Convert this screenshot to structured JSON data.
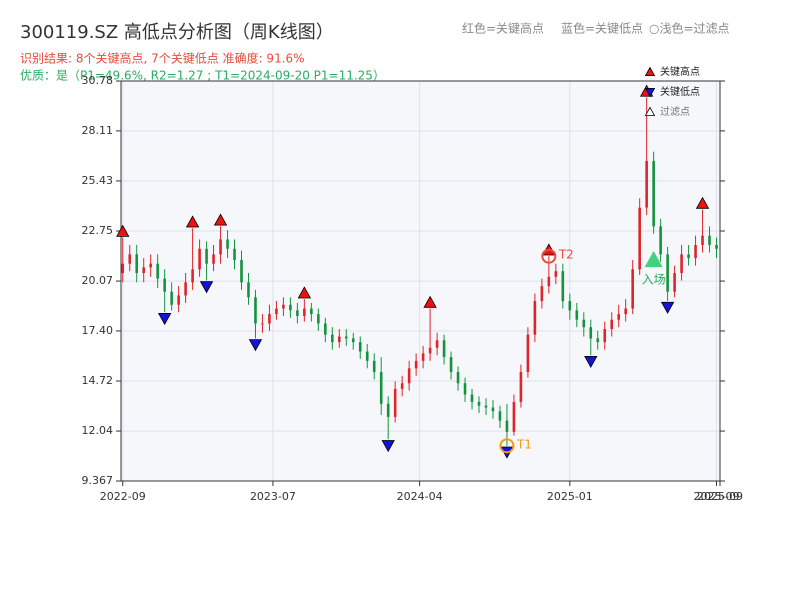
{
  "chart_data": {
    "type": "candlestick",
    "title": "300119.SZ 高低点分析图（周K线图）",
    "result_text": "识别结果: 8个关键高点, 7个关键低点  准确度: 91.6%",
    "quality_text": "优质：是（P1=49.6%, R2=1.27 ; T1=2024-09-20 P1=11.25）",
    "header_legend": [
      "红色=关键高点",
      "蓝色=关键低点",
      "○浅色=过滤点"
    ],
    "ylim": [
      9.367,
      30.78
    ],
    "yticks": [
      9.367,
      12.04,
      14.72,
      {
        "value": 17.4,
        "label": "17.40"
      },
      20.07,
      22.75,
      25.43,
      28.11,
      30.78
    ],
    "xlim": [
      -0.5,
      171
    ],
    "xticks": [
      {
        "value": 0,
        "label": "2022-09"
      },
      {
        "value": 43,
        "label": "2023-07"
      },
      {
        "value": 85,
        "label": "2024-04"
      },
      {
        "value": 128,
        "label": "2025-01"
      },
      {
        "value": 170,
        "label": "2025-09"
      },
      {
        "value": 171,
        "label": "2025-09"
      }
    ],
    "grid": true,
    "up_color": "#e0242b",
    "down_color": "#14933f",
    "candles": {
      "x": [
        0,
        2,
        4,
        6,
        8,
        10,
        12,
        14,
        16,
        18,
        20,
        22,
        24,
        26,
        28,
        30,
        32,
        34,
        36,
        38,
        40,
        42,
        44,
        46,
        48,
        50,
        52,
        54,
        56,
        58,
        60,
        62,
        64,
        66,
        68,
        70,
        72,
        74,
        76,
        78,
        80,
        82,
        84,
        86,
        88,
        90,
        92,
        94,
        96,
        98,
        100,
        102,
        104,
        106,
        108,
        110,
        112,
        114,
        116,
        118,
        120,
        122,
        124,
        126,
        128,
        130,
        132,
        134,
        136,
        138,
        140,
        142,
        144,
        146,
        148,
        150,
        152,
        154,
        156,
        158,
        160,
        162,
        164,
        166,
        168,
        170
      ],
      "open": [
        20.5,
        21,
        21.5,
        20.5,
        20.8,
        21,
        20.2,
        19.5,
        18.8,
        19.3,
        20,
        20.7,
        21.8,
        21,
        21.5,
        22.3,
        21.8,
        21.2,
        20,
        19.2,
        17.8,
        17.8,
        18.3,
        18.6,
        18.8,
        18.5,
        18.2,
        18.6,
        18.3,
        17.8,
        17.2,
        16.8,
        17.1,
        17.0,
        16.8,
        16.3,
        15.8,
        15.2,
        13.5,
        12.8,
        14.3,
        14.6,
        15.4,
        15.8,
        16.2,
        16.5,
        16.9,
        16.0,
        15.2,
        14.6,
        14.0,
        13.6,
        13.4,
        13.3,
        13.1,
        12.6,
        12.0,
        13.6,
        15.2,
        17.2,
        19.0,
        19.8,
        20.3,
        20.6,
        19.0,
        18.5,
        18.0,
        17.6,
        17.0,
        16.8,
        17.5,
        18.0,
        18.3,
        18.6,
        20.7,
        24.0,
        26.5,
        23.0,
        21.5,
        19.5,
        20.5,
        21.5,
        21.3,
        22.0,
        22.5,
        22.0
      ],
      "high": [
        22.4,
        22.0,
        22.0,
        21.3,
        21.5,
        21.5,
        20.7,
        20.0,
        19.8,
        20.5,
        22.9,
        22.3,
        22.2,
        22.0,
        23.0,
        22.8,
        22.3,
        21.7,
        20.5,
        19.6,
        18.3,
        18.8,
        19.0,
        19.2,
        19.2,
        18.9,
        19.1,
        18.9,
        18.6,
        18.1,
        17.6,
        17.5,
        17.5,
        17.3,
        17.1,
        16.7,
        16.2,
        16.0,
        13.9,
        14.7,
        15.0,
        15.8,
        16.2,
        16.6,
        18.6,
        17.3,
        17.2,
        16.3,
        15.5,
        14.9,
        14.3,
        13.9,
        13.8,
        13.7,
        13.4,
        13.5,
        14.0,
        15.6,
        17.6,
        19.4,
        20.2,
        21.4,
        21.0,
        21.0,
        19.4,
        18.9,
        18.4,
        18.0,
        17.4,
        17.9,
        18.4,
        18.8,
        19.1,
        21.2,
        24.5,
        29.9,
        27.0,
        23.4,
        21.9,
        20.9,
        22.0,
        22.0,
        22.5,
        23.9,
        23.0,
        22.4
      ],
      "low": [
        20.0,
        20.6,
        20.0,
        20.0,
        20.3,
        19.7,
        18.4,
        18.5,
        18.4,
        18.9,
        19.6,
        20.3,
        20.1,
        20.6,
        21.0,
        21.3,
        20.7,
        19.6,
        18.8,
        17.0,
        17.3,
        17.4,
        18.0,
        18.2,
        18.1,
        17.8,
        17.9,
        17.9,
        17.4,
        16.8,
        16.4,
        16.5,
        16.6,
        16.4,
        15.9,
        15.4,
        14.8,
        12.9,
        11.6,
        12.5,
        13.9,
        14.2,
        15.0,
        15.4,
        15.8,
        16.1,
        15.6,
        14.8,
        14.2,
        13.6,
        13.2,
        13.0,
        12.9,
        12.7,
        12.2,
        11.25,
        11.8,
        13.3,
        14.9,
        16.8,
        18.6,
        19.4,
        19.9,
        18.6,
        18.0,
        17.6,
        17.1,
        16.1,
        16.4,
        16.4,
        17.1,
        17.6,
        17.9,
        18.3,
        20.4,
        23.6,
        22.6,
        21.1,
        19.0,
        19.2,
        20.1,
        20.9,
        20.9,
        21.6,
        21.6,
        21.3
      ],
      "close": [
        21,
        21.5,
        20.5,
        20.8,
        21,
        20.2,
        19.5,
        18.8,
        19.3,
        20,
        20.7,
        21.8,
        21,
        21.5,
        22.3,
        21.8,
        21.2,
        20,
        19.2,
        17.8,
        17.8,
        18.3,
        18.6,
        18.8,
        18.5,
        18.2,
        18.6,
        18.3,
        17.8,
        17.2,
        16.8,
        17.1,
        17.0,
        16.8,
        16.3,
        15.8,
        15.2,
        13.5,
        12.8,
        14.3,
        14.6,
        15.4,
        15.8,
        16.2,
        16.5,
        16.9,
        16.0,
        15.2,
        14.6,
        14.0,
        13.6,
        13.4,
        13.3,
        13.1,
        12.6,
        12.0,
        13.6,
        15.2,
        17.2,
        19.0,
        19.8,
        20.3,
        20.6,
        19.0,
        18.5,
        18.0,
        17.6,
        17.0,
        16.8,
        17.5,
        18.0,
        18.3,
        18.6,
        20.7,
        24.0,
        26.5,
        23.0,
        21.5,
        19.5,
        20.5,
        21.5,
        21.3,
        22.0,
        22.5,
        22.0,
        21.8
      ]
    },
    "series": [
      {
        "name": "关键高点",
        "color": "#ee1111",
        "marker": "up",
        "x": [
          0,
          20,
          28,
          52,
          88,
          122,
          150,
          166
        ],
        "values": [
          22.4,
          22.9,
          23.0,
          19.1,
          18.6,
          21.4,
          29.9,
          23.9
        ]
      },
      {
        "name": "关键低点",
        "color": "#1414d8",
        "marker": "down",
        "x": [
          12,
          24,
          38,
          76,
          110,
          134,
          156
        ],
        "values": [
          18.4,
          20.1,
          17.0,
          11.6,
          11.25,
          16.1,
          19.0
        ]
      },
      {
        "name": "过滤点",
        "color": "#ffffff",
        "marker": "up",
        "x": [],
        "values": []
      }
    ],
    "annotations": [
      {
        "label": "T1",
        "kind": "circle",
        "color": "#f39c12",
        "x": 110,
        "value": 11.25
      },
      {
        "label": "T2",
        "kind": "circle",
        "color": "#e74c3c",
        "x": 122,
        "value": 21.4
      },
      {
        "label": "入场",
        "kind": "triangle",
        "color": "#2ecc71",
        "x": 152,
        "value": 21.2
      }
    ],
    "legend_position": "upper right"
  }
}
